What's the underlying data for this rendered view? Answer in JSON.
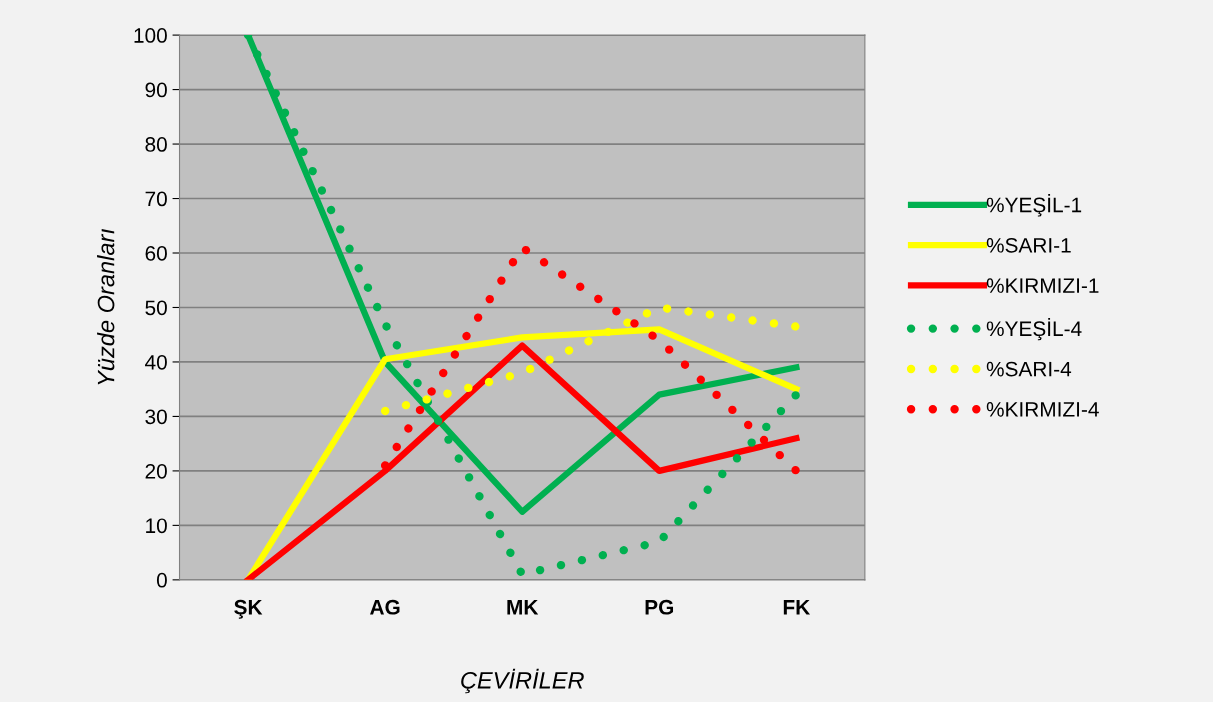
{
  "chart_data": {
    "type": "line",
    "xlabel": "ÇEVİRİLER",
    "ylabel": "Yüzde Oranları",
    "categories": [
      "ŞK",
      "AG",
      "MK",
      "PG",
      "FK"
    ],
    "ylim": [
      0,
      100
    ],
    "yticks": [
      0,
      10,
      20,
      30,
      40,
      50,
      60,
      70,
      80,
      90,
      100
    ],
    "grid": "y",
    "legend": "right",
    "marker": "none",
    "series": [
      {
        "name": "%YEŞİL-1",
        "color": "#00b050",
        "line_style": "solid",
        "values": [
          100,
          40,
          12.5,
          34,
          39
        ]
      },
      {
        "name": "%SARI-1",
        "color": "#ffff00",
        "line_style": "solid",
        "values": [
          0,
          40.5,
          44.5,
          46,
          35
        ]
      },
      {
        "name": "%KIRMIZI-1",
        "color": "#ff0000",
        "line_style": "solid",
        "values": [
          0,
          20,
          43,
          20,
          26
        ]
      },
      {
        "name": "%YEŞİL-4",
        "color": "#00b050",
        "line_style": "dotted",
        "values": [
          100,
          47,
          1,
          7,
          34
        ]
      },
      {
        "name": "%SARI-4",
        "color": "#ffff00",
        "line_style": "dotted",
        "values": [
          null,
          31,
          38,
          50,
          46.5
        ]
      },
      {
        "name": "%KIRMIZI-4",
        "color": "#ff0000",
        "line_style": "dotted",
        "values": [
          null,
          21,
          61,
          44,
          20
        ]
      }
    ]
  }
}
